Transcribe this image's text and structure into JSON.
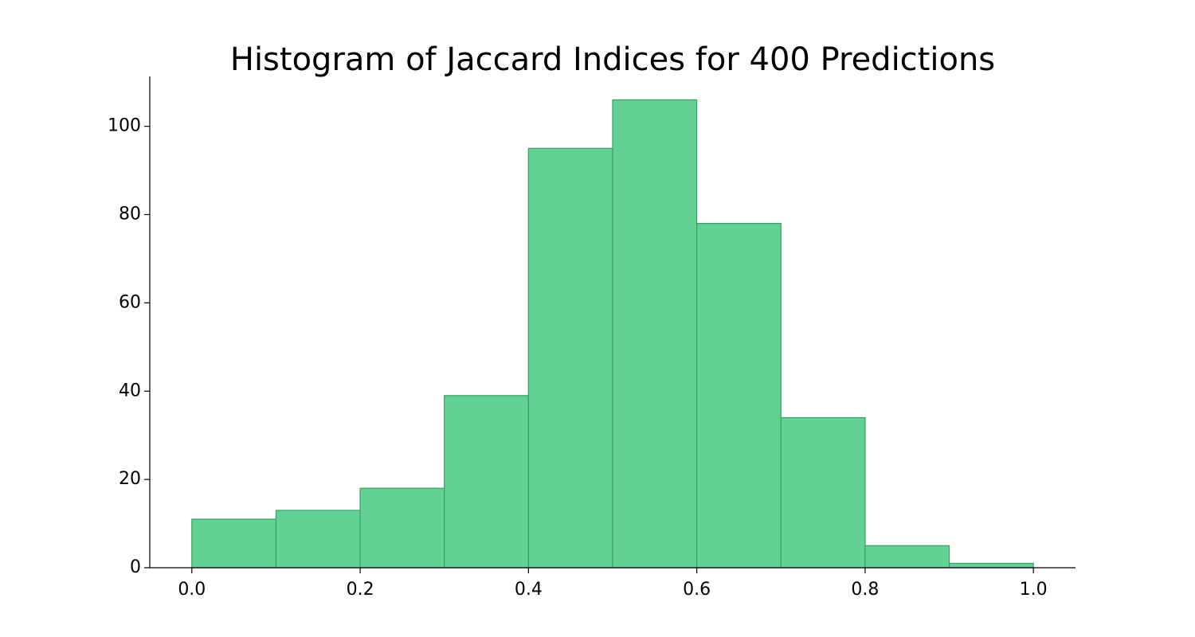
{
  "chart_data": {
    "type": "bar",
    "title": "Histogram of Jaccard Indices for 400 Predictions",
    "xlabel": "",
    "ylabel": "",
    "bin_edges": [
      0.0,
      0.1,
      0.2,
      0.3,
      0.4,
      0.5,
      0.6,
      0.7,
      0.8,
      0.9,
      1.0
    ],
    "values": [
      11,
      13,
      18,
      39,
      95,
      106,
      78,
      34,
      5,
      1
    ],
    "xlim": [
      -0.05,
      1.05
    ],
    "ylim": [
      0,
      111.3
    ],
    "x_ticks": [
      0.0,
      0.2,
      0.4,
      0.6,
      0.8,
      1.0
    ],
    "x_tick_labels": [
      "0.0",
      "0.2",
      "0.4",
      "0.6",
      "0.8",
      "1.0"
    ],
    "y_ticks": [
      0,
      20,
      40,
      60,
      80,
      100
    ],
    "y_tick_labels": [
      "0",
      "20",
      "40",
      "60",
      "80",
      "100"
    ],
    "grid": false,
    "bar_color": "#62d194",
    "bar_edge_color": "#3f9a6a"
  }
}
